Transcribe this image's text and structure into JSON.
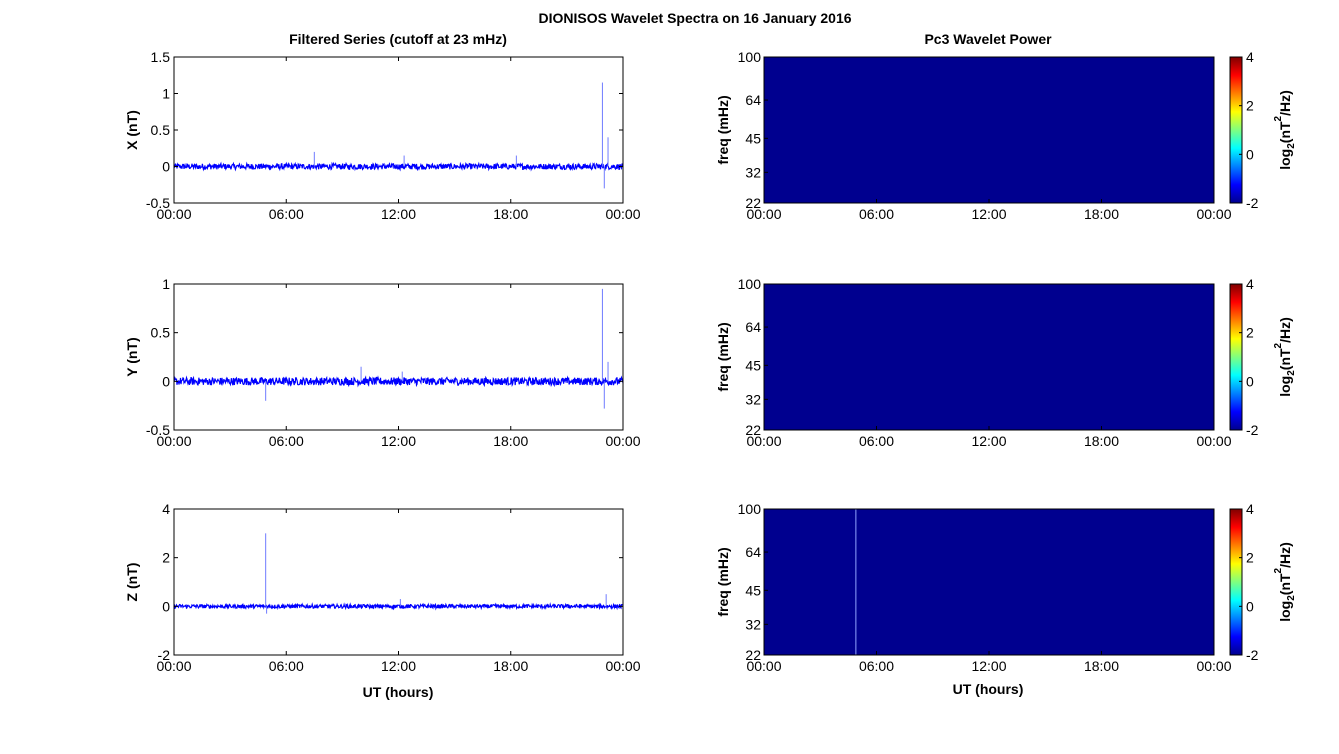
{
  "figure": {
    "title": "DIONISOS Wavelet Spectra on 16 January 2016",
    "left_title": "Filtered Series (cutoff at 23 mHz)",
    "right_title": "Pc3 Wavelet Power",
    "xlabel": "UT (hours)"
  },
  "colors": {
    "series": "#0000ff",
    "spectrum_background": "#00008f",
    "spike_line": "#8fa3ff"
  },
  "chart_data": [
    {
      "type": "line",
      "ylabel": "X (nT)",
      "x_ticks": [
        "00:00",
        "06:00",
        "12:00",
        "18:00",
        "00:00"
      ],
      "y_ticks": [
        -0.5,
        0,
        0.5,
        1,
        1.5
      ],
      "xlim": [
        0,
        24
      ],
      "ylim": [
        -0.5,
        1.5
      ],
      "noise_amplitude": 0.04,
      "spikes": [
        {
          "x": 7.5,
          "y": 0.2
        },
        {
          "x": 12.3,
          "y": 0.15
        },
        {
          "x": 18.3,
          "y": 0.15
        },
        {
          "x": 22.9,
          "y": 1.15
        },
        {
          "x": 23.0,
          "y": -0.3
        },
        {
          "x": 23.2,
          "y": 0.4
        }
      ]
    },
    {
      "type": "line",
      "ylabel": "Y (nT)",
      "x_ticks": [
        "00:00",
        "06:00",
        "12:00",
        "18:00",
        "00:00"
      ],
      "y_ticks": [
        -0.5,
        0,
        0.5,
        1
      ],
      "xlim": [
        0,
        24
      ],
      "ylim": [
        -0.5,
        1
      ],
      "noise_amplitude": 0.04,
      "spikes": [
        {
          "x": 4.9,
          "y": -0.2
        },
        {
          "x": 10.0,
          "y": 0.15
        },
        {
          "x": 12.2,
          "y": 0.1
        },
        {
          "x": 22.9,
          "y": 0.95
        },
        {
          "x": 23.0,
          "y": -0.28
        },
        {
          "x": 23.2,
          "y": 0.2
        }
      ]
    },
    {
      "type": "line",
      "ylabel": "Z (nT)",
      "x_ticks": [
        "00:00",
        "06:00",
        "12:00",
        "18:00",
        "00:00"
      ],
      "y_ticks": [
        -2,
        0,
        2,
        4
      ],
      "xlim": [
        0,
        24
      ],
      "ylim": [
        -2,
        4
      ],
      "noise_amplitude": 0.08,
      "spikes": [
        {
          "x": 4.9,
          "y": 3.0
        },
        {
          "x": 4.95,
          "y": -0.3
        },
        {
          "x": 12.1,
          "y": 0.3
        },
        {
          "x": 23.1,
          "y": 0.5
        }
      ]
    },
    {
      "type": "heatmap",
      "ylabel": "freq (mHz)",
      "x_ticks": [
        "00:00",
        "06:00",
        "12:00",
        "18:00",
        "00:00"
      ],
      "y_ticks": [
        "100",
        "64",
        "45",
        "32",
        "22"
      ],
      "colorbar_ticks": [
        4,
        2,
        0,
        -2
      ],
      "colorbar_label": "log2(nT2/Hz)",
      "clim": [
        -2,
        4
      ],
      "spike_x": null
    },
    {
      "type": "heatmap",
      "ylabel": "freq (mHz)",
      "x_ticks": [
        "00:00",
        "06:00",
        "12:00",
        "18:00",
        "00:00"
      ],
      "y_ticks": [
        "100",
        "64",
        "45",
        "32",
        "22"
      ],
      "colorbar_ticks": [
        4,
        2,
        0,
        -2
      ],
      "colorbar_label": "log2(nT2/Hz)",
      "clim": [
        -2,
        4
      ],
      "spike_x": null
    },
    {
      "type": "heatmap",
      "ylabel": "freq (mHz)",
      "x_ticks": [
        "00:00",
        "06:00",
        "12:00",
        "18:00",
        "00:00"
      ],
      "y_ticks": [
        "100",
        "64",
        "45",
        "32",
        "22"
      ],
      "colorbar_ticks": [
        4,
        2,
        0,
        -2
      ],
      "colorbar_label": "log2(nT2/Hz)",
      "clim": [
        -2,
        4
      ],
      "spike_x": 4.9
    }
  ]
}
